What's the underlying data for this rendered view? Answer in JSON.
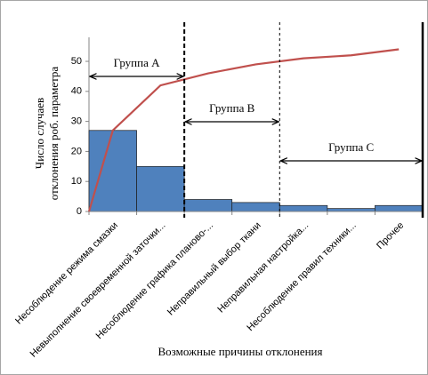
{
  "chart_data": {
    "type": "bar",
    "categories": [
      "Несоблюдение режима смазки",
      "Невыполнение своевременной заточки...",
      "Несоблюдение графика планово-...",
      "Неправильный выбор ткани",
      "Неправильная настройка...",
      "Несоблюдение правил техники...",
      "Прочее"
    ],
    "series": [
      {
        "type": "bar",
        "color": "#4f81bd",
        "values": [
          27,
          15,
          4,
          3,
          2,
          1,
          2
        ]
      },
      {
        "type": "line",
        "color": "#c0504d",
        "values": [
          27,
          42,
          46,
          49,
          51,
          52,
          54
        ]
      }
    ],
    "ylim": [
      0,
      58
    ],
    "yticks": [
      0,
      10,
      20,
      30,
      40,
      50
    ],
    "y_label": [
      "Число случаев",
      "отклонения роб. параметра"
    ],
    "x_label": "Возможные причины отклонения",
    "annotations": [
      "Группа А",
      "Группа В",
      "Группа С"
    ]
  }
}
